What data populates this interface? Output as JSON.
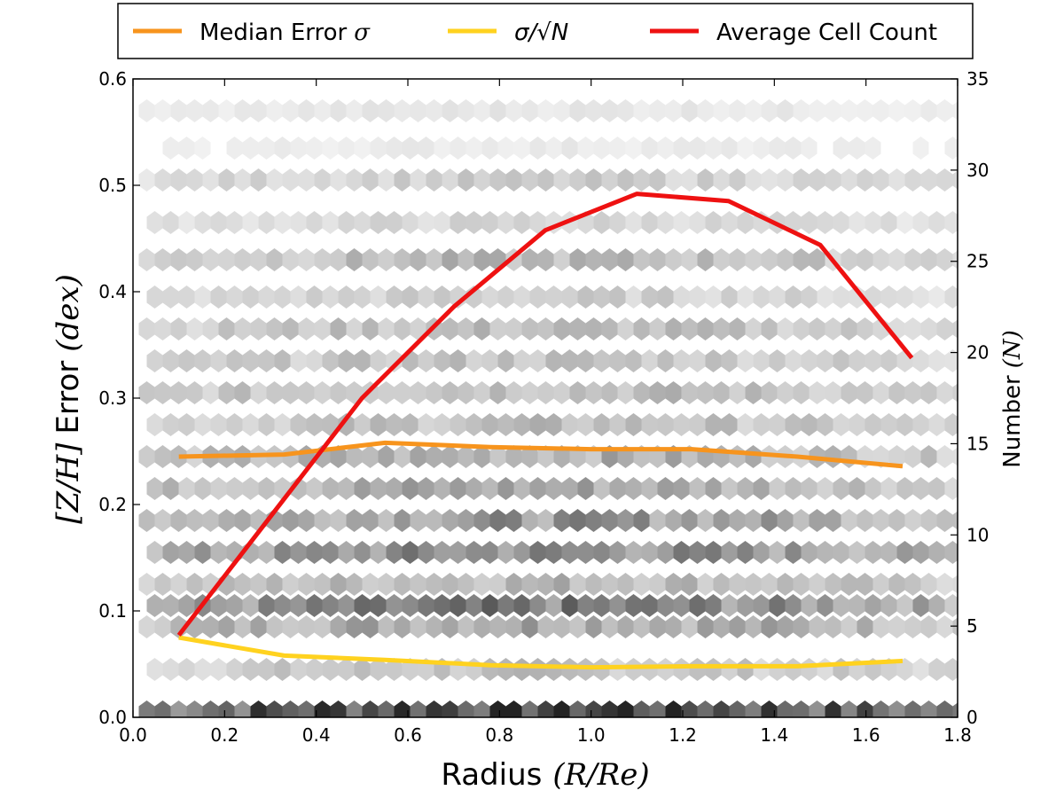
{
  "chart_data": {
    "type": "line",
    "subtype": "hexbin-density-with-overlaid-lines",
    "x_axis": {
      "label": "Radius",
      "label_math": "(R/Re)",
      "lim": [
        0.0,
        1.8
      ],
      "ticks": [
        0.0,
        0.2,
        0.4,
        0.6,
        0.8,
        1.0,
        1.2,
        1.4,
        1.6,
        1.8
      ],
      "tick_labels": [
        "0.0",
        "0.2",
        "0.4",
        "0.6",
        "0.8",
        "1.0",
        "1.2",
        "1.4",
        "1.6",
        "1.8"
      ]
    },
    "y_axis_left": {
      "label_math": "[Z/H]",
      "label": "Error",
      "label_unit": "(dex)",
      "lim": [
        0.0,
        0.6
      ],
      "ticks": [
        0.0,
        0.1,
        0.2,
        0.3,
        0.4,
        0.5,
        0.6
      ],
      "tick_labels": [
        "0.0",
        "0.1",
        "0.2",
        "0.3",
        "0.4",
        "0.5",
        "0.6"
      ]
    },
    "y_axis_right": {
      "label": "Number",
      "label_math": "(N)",
      "lim": [
        0,
        35
      ],
      "ticks": [
        0,
        5,
        10,
        15,
        20,
        25,
        30,
        35
      ],
      "tick_labels": [
        "0",
        "5",
        "10",
        "15",
        "20",
        "25",
        "30",
        "35"
      ]
    },
    "legend": {
      "placement": "top-center-outside",
      "entries": [
        {
          "label": "Median Error",
          "label_math": "σ",
          "color": "#f7941d"
        },
        {
          "label": "σ/√N",
          "label_math": "σ/√N",
          "color": "#ffd21f"
        },
        {
          "label": "Average Cell Count",
          "label_math": "",
          "color": "#ee1111"
        }
      ]
    },
    "series": [
      {
        "name": "Median Error σ",
        "axis": "left",
        "color": "#f7941d",
        "x": [
          0.1,
          0.33,
          0.55,
          0.78,
          1.0,
          1.22,
          1.45,
          1.68
        ],
        "y": [
          0.245,
          0.247,
          0.258,
          0.254,
          0.252,
          0.252,
          0.245,
          0.236
        ]
      },
      {
        "name": "σ/√N",
        "axis": "left",
        "color": "#ffd21f",
        "x": [
          0.1,
          0.33,
          0.55,
          0.78,
          1.0,
          1.22,
          1.45,
          1.68
        ],
        "y": [
          0.075,
          0.058,
          0.054,
          0.049,
          0.047,
          0.048,
          0.048,
          0.053
        ]
      },
      {
        "name": "Average Cell Count",
        "axis": "right",
        "color": "#ee1111",
        "x": [
          0.1,
          0.3,
          0.5,
          0.7,
          0.9,
          1.1,
          1.3,
          1.5,
          1.7
        ],
        "y": [
          4.5,
          11.0,
          17.5,
          22.5,
          26.7,
          28.7,
          28.3,
          25.9,
          19.7
        ]
      }
    ],
    "hexbin": {
      "colormap": "greys",
      "description": "density of error measurements per radius bin",
      "x_range": [
        0.03,
        1.8
      ],
      "y_rows": [
        0.005,
        0.045,
        0.085,
        0.105,
        0.125,
        0.155,
        0.185,
        0.215,
        0.245,
        0.275,
        0.305,
        0.335,
        0.365,
        0.395,
        0.43,
        0.465,
        0.505,
        0.535,
        0.57
      ],
      "row_density": [
        1.0,
        0.28,
        0.45,
        0.6,
        0.35,
        0.55,
        0.5,
        0.42,
        0.38,
        0.3,
        0.32,
        0.28,
        0.3,
        0.22,
        0.32,
        0.18,
        0.22,
        0.08,
        0.1
      ]
    }
  }
}
